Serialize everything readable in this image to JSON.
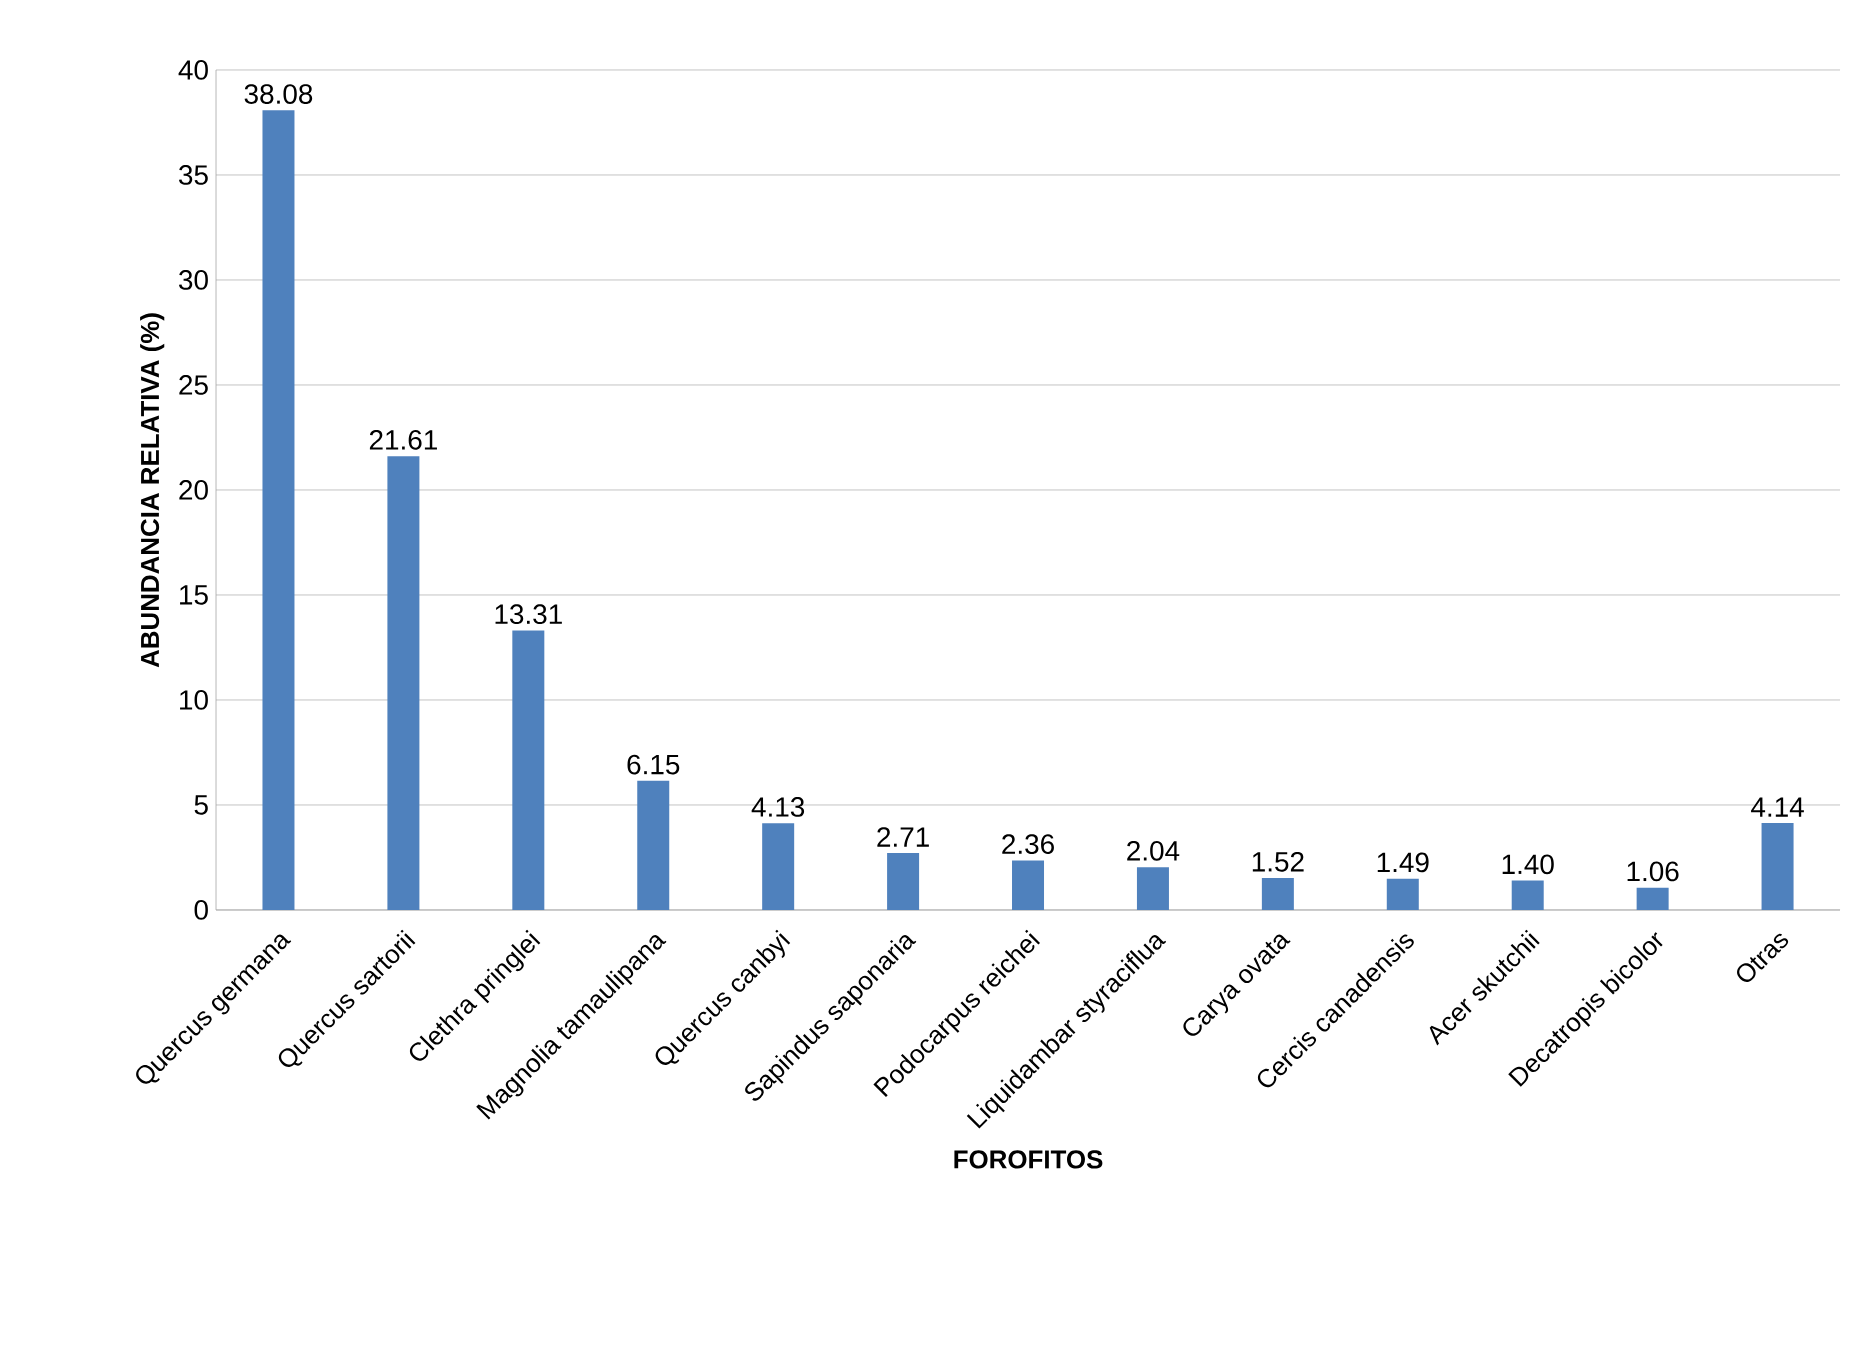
{
  "chart_data": {
    "type": "bar",
    "xlabel": "FOROFITOS",
    "ylabel": "ABUNDANCIA RELATIVA (%)",
    "categories": [
      "Quercus germana",
      "Quercus sartorii",
      "Clethra pringlei",
      "Magnolia tamaulipana",
      "Quercus canbyi",
      "Sapindus saponaria",
      "Podocarpus reichei",
      "Liquidambar styraciflua",
      "Carya ovata",
      "Cercis canadensis",
      "Acer skutchii",
      "Decatropis bicolor",
      "Otras"
    ],
    "values": [
      38.08,
      21.61,
      13.31,
      6.15,
      4.13,
      2.71,
      2.36,
      2.04,
      1.52,
      1.49,
      1.4,
      1.06,
      4.14
    ],
    "value_labels": [
      "38.08",
      "21.61",
      "13.31",
      "6.15",
      "4.13",
      "2.71",
      "2.36",
      "2.04",
      "1.52",
      "1.49",
      "1.40",
      "1.06",
      "4.14"
    ],
    "color": "#4f81bd",
    "ylim": [
      0,
      40
    ],
    "yticks": [
      0,
      5,
      10,
      15,
      20,
      25,
      30,
      35,
      40
    ],
    "grid": "y"
  }
}
